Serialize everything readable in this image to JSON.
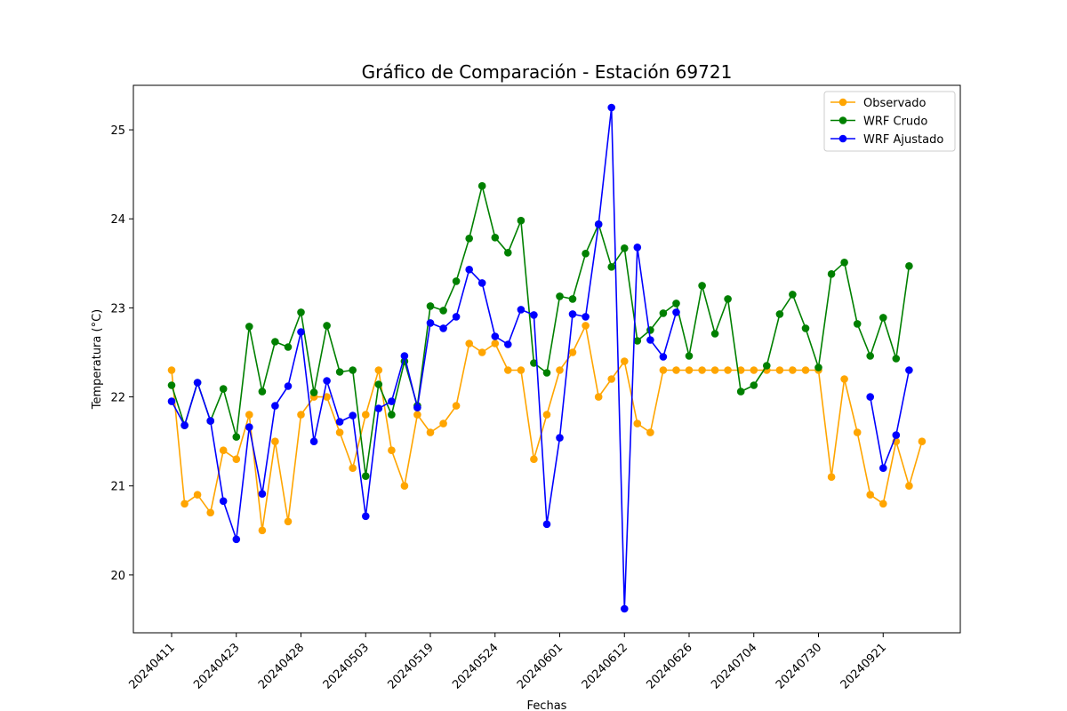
{
  "chart_data": {
    "type": "line",
    "title": "Gráfico de Comparación - Estación 69721",
    "xlabel": "Fechas",
    "ylabel": "Temperatura (°C)",
    "ylim": [
      19.35,
      25.5
    ],
    "yticks": [
      20,
      21,
      22,
      23,
      24,
      25
    ],
    "grid": false,
    "legend_position": "top-right",
    "n_points": 59,
    "xtick_positions": [
      0,
      5,
      10,
      15,
      20,
      25,
      30,
      35,
      40,
      45,
      50,
      55
    ],
    "xtick_labels": [
      "20240411",
      "20240423",
      "20240428",
      "20240503",
      "20240519",
      "20240524",
      "20240601",
      "20240612",
      "20240626",
      "20240704",
      "20240730",
      "20240921"
    ],
    "series": [
      {
        "name": "Observado",
        "color": "#ffa500",
        "values": [
          22.3,
          20.8,
          20.9,
          20.7,
          21.4,
          21.3,
          21.8,
          20.5,
          21.5,
          20.6,
          21.8,
          22.0,
          22.0,
          21.6,
          21.2,
          21.8,
          22.3,
          21.4,
          21.0,
          21.8,
          21.6,
          21.7,
          21.9,
          22.6,
          22.5,
          22.6,
          22.3,
          22.3,
          21.3,
          21.8,
          22.3,
          22.5,
          22.8,
          22.0,
          22.2,
          22.4,
          21.7,
          21.6,
          22.3,
          22.3,
          22.3,
          22.3,
          22.3,
          22.3,
          22.3,
          22.3,
          22.3,
          22.3,
          22.3,
          22.3,
          22.3,
          21.1,
          22.2,
          21.6,
          20.9,
          20.8,
          21.5,
          21.0,
          21.5
        ]
      },
      {
        "name": "WRF Crudo",
        "color": "#008000",
        "values": [
          22.13,
          21.68,
          22.16,
          21.73,
          22.09,
          21.55,
          22.79,
          22.06,
          22.62,
          22.56,
          22.95,
          22.05,
          22.8,
          22.28,
          22.3,
          21.11,
          22.14,
          21.8,
          22.4,
          21.9,
          23.02,
          22.97,
          23.3,
          23.78,
          24.37,
          23.79,
          23.62,
          23.98,
          22.38,
          22.27,
          23.13,
          23.1,
          23.61,
          23.94,
          23.46,
          23.67,
          22.63,
          22.75,
          22.94,
          23.05,
          22.46,
          23.25,
          22.71,
          23.1,
          22.06,
          22.13,
          22.35,
          22.93,
          23.15,
          22.77,
          22.33,
          23.38,
          23.51,
          22.82,
          22.46,
          22.89,
          22.43,
          23.47,
          null
        ]
      },
      {
        "name": "WRF Ajustado",
        "color": "#0000ff",
        "values": [
          21.95,
          21.68,
          22.16,
          21.73,
          20.83,
          20.4,
          21.66,
          20.91,
          21.9,
          22.12,
          22.73,
          21.5,
          22.18,
          21.72,
          21.79,
          20.66,
          21.87,
          21.95,
          22.46,
          21.88,
          22.83,
          22.77,
          22.9,
          23.43,
          23.28,
          22.68,
          22.59,
          22.98,
          22.92,
          20.57,
          21.54,
          22.93,
          22.9,
          23.94,
          25.25,
          19.62,
          23.68,
          22.64,
          22.45,
          22.95,
          null,
          null,
          null,
          null,
          null,
          null,
          null,
          null,
          null,
          null,
          null,
          null,
          null,
          null,
          22.0,
          21.2,
          21.57,
          22.3,
          null
        ]
      }
    ]
  }
}
